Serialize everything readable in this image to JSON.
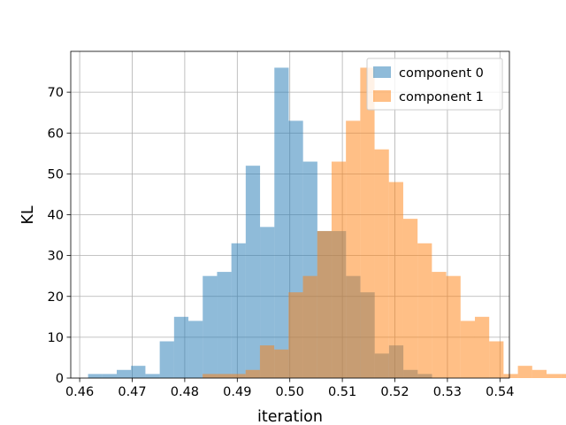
{
  "chart_data": {
    "type": "bar",
    "subtype": "overlapping-histogram",
    "title": "",
    "xlabel": "iteration",
    "ylabel": "KL",
    "xlim": [
      0.4583,
      0.5418
    ],
    "ylim": [
      0,
      80
    ],
    "xticks": [
      0.46,
      0.47,
      0.48,
      0.49,
      0.5,
      0.51,
      0.52,
      0.53,
      0.54
    ],
    "xtick_labels": [
      "0.46",
      "0.47",
      "0.48",
      "0.49",
      "0.50",
      "0.51",
      "0.52",
      "0.53",
      "0.54"
    ],
    "yticks": [
      0,
      10,
      20,
      30,
      40,
      50,
      60,
      70
    ],
    "ytick_labels": [
      "0",
      "10",
      "20",
      "30",
      "40",
      "50",
      "60",
      "70"
    ],
    "grid": true,
    "legend_position": "top-right",
    "alpha": 0.5,
    "series": [
      {
        "name": "component 0",
        "color": "#1f77b4",
        "bin_width": 0.002728,
        "bin_start": 0.4616,
        "counts": [
          1,
          1,
          2,
          3,
          1,
          9,
          15,
          14,
          25,
          26,
          33,
          52,
          37,
          76,
          63,
          53,
          36,
          36,
          25,
          21,
          6,
          8,
          2,
          1
        ]
      },
      {
        "name": "component 1",
        "color": "#ff7f0e",
        "bin_width": 0.002728,
        "bin_start": 0.4834,
        "counts": [
          1,
          1,
          1,
          2,
          8,
          7,
          21,
          25,
          36,
          53,
          63,
          76,
          56,
          48,
          39,
          33,
          26,
          25,
          14,
          15,
          9,
          1,
          3,
          2,
          1,
          1
        ]
      }
    ]
  }
}
